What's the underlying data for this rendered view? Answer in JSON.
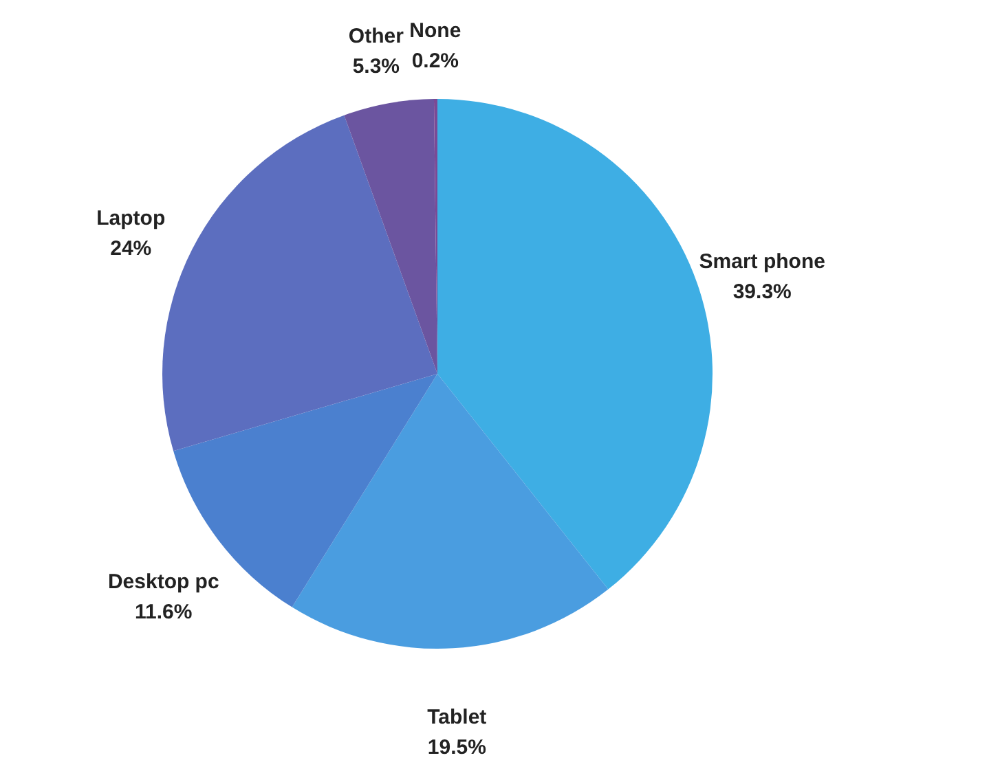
{
  "chart_data": {
    "type": "pie",
    "categories": [
      "Smart phone",
      "Tablet",
      "Desktop pc",
      "Laptop",
      "Other",
      "None"
    ],
    "values": [
      39.3,
      19.5,
      11.6,
      24,
      5.3,
      0.2
    ],
    "value_labels": [
      "39.3%",
      "19.5%",
      "11.6%",
      "24%",
      "5.3%",
      "0.2%"
    ],
    "colors": [
      "#3eaee4",
      "#4a9de0",
      "#4b80cf",
      "#5c6ebf",
      "#6b55a0",
      "#7a4a95"
    ]
  }
}
